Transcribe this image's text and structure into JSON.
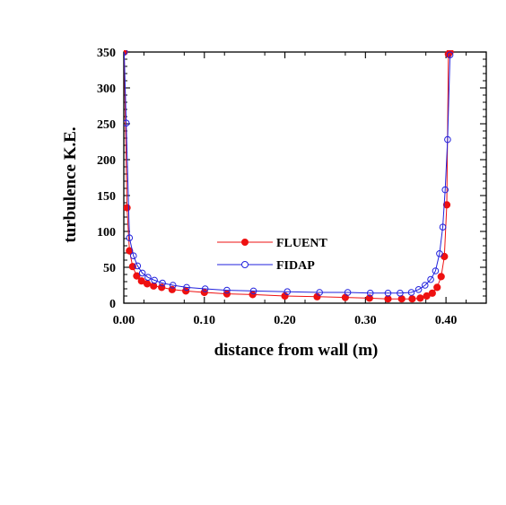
{
  "chart_data": {
    "type": "line",
    "title": "",
    "xlabel": "distance from wall (m)",
    "ylabel": "turbulence K.E.",
    "xlim": [
      0,
      0.45
    ],
    "ylim": [
      0,
      350
    ],
    "x_ticks": [
      0.0,
      0.1,
      0.2,
      0.3,
      0.4
    ],
    "x_tick_labels": [
      "0.00",
      "0.10",
      "0.20",
      "0.30",
      "0.40"
    ],
    "y_ticks": [
      0,
      50,
      100,
      150,
      200,
      250,
      300,
      350
    ],
    "y_tick_labels": [
      "0",
      "50",
      "100",
      "150",
      "200",
      "250",
      "300",
      "350"
    ],
    "grid": false,
    "legend_position": "center",
    "series": [
      {
        "name": "FLUENT",
        "color": "#ee1111",
        "marker": "filled-circle",
        "x": [
          0.0005,
          0.004,
          0.007,
          0.011,
          0.016,
          0.022,
          0.029,
          0.037,
          0.047,
          0.06,
          0.077,
          0.1,
          0.128,
          0.16,
          0.2,
          0.24,
          0.275,
          0.305,
          0.328,
          0.345,
          0.358,
          0.368,
          0.376,
          0.383,
          0.389,
          0.394,
          0.398,
          0.401,
          0.403,
          0.405
        ],
        "y": [
          350,
          133,
          73,
          51,
          38,
          31,
          27,
          24,
          22,
          19,
          17,
          15,
          13,
          12,
          10,
          9,
          8,
          7,
          6,
          6,
          6,
          7,
          10,
          14,
          22,
          37,
          65,
          137,
          347,
          350
        ]
      },
      {
        "name": "FIDAP",
        "color": "#2222dd",
        "marker": "open-circle",
        "x": [
          0.0005,
          0.003,
          0.007,
          0.012,
          0.017,
          0.023,
          0.03,
          0.038,
          0.048,
          0.061,
          0.078,
          0.101,
          0.128,
          0.161,
          0.203,
          0.243,
          0.278,
          0.306,
          0.328,
          0.343,
          0.357,
          0.366,
          0.374,
          0.381,
          0.387,
          0.392,
          0.396,
          0.399,
          0.402,
          0.405
        ],
        "y": [
          350,
          251,
          91,
          66,
          52,
          42,
          36,
          32,
          28,
          25,
          22,
          20,
          18,
          17,
          16,
          15,
          15,
          14,
          14,
          14,
          15,
          19,
          25,
          33,
          45,
          69,
          106,
          158,
          228,
          346
        ]
      }
    ]
  }
}
